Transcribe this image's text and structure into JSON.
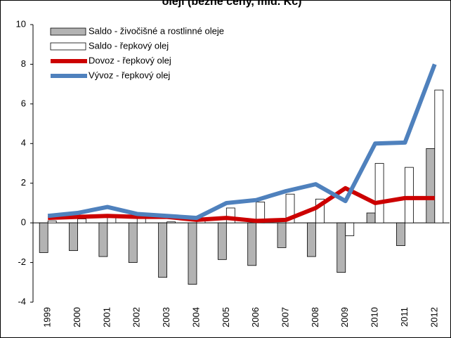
{
  "chart_data": {
    "type": "bar",
    "title": "oleji (běžné ceny, mld. Kč)",
    "categories": [
      "1999",
      "2000",
      "2001",
      "2002",
      "2003",
      "2004",
      "2005",
      "2006",
      "2007",
      "2008",
      "2009",
      "2010",
      "2011",
      "2012"
    ],
    "series": [
      {
        "name": "Saldo - živočišné a rostlinné oleje",
        "type": "bar",
        "color": "#b3b3b3",
        "values": [
          -1.5,
          -1.4,
          -1.7,
          -2.0,
          -2.75,
          -3.1,
          -1.85,
          -2.15,
          -1.25,
          -1.7,
          -2.5,
          0.5,
          -1.15,
          3.75
        ]
      },
      {
        "name": "Saldo - řepkový olej",
        "type": "bar",
        "color": "#ffffff",
        "values": [
          0.1,
          0.2,
          0.35,
          0.3,
          0.05,
          0.1,
          0.75,
          1.05,
          1.45,
          1.2,
          -0.65,
          3.0,
          2.8,
          6.7
        ]
      },
      {
        "name": "Dovoz - řepkový olej",
        "type": "line",
        "color": "#cc0000",
        "values": [
          0.25,
          0.3,
          0.35,
          0.3,
          0.3,
          0.15,
          0.25,
          0.1,
          0.15,
          0.75,
          1.75,
          1.0,
          1.25,
          1.25
        ]
      },
      {
        "name": "Vývoz - řepkový olej",
        "type": "line",
        "color": "#4f81bd",
        "values": [
          0.35,
          0.5,
          0.8,
          0.45,
          0.35,
          0.25,
          1.0,
          1.15,
          1.6,
          1.95,
          1.1,
          4.0,
          4.05,
          8.0
        ]
      }
    ],
    "ylim": [
      -4,
      10
    ],
    "yticks": [
      -4,
      -2,
      0,
      2,
      4,
      6,
      8,
      10
    ],
    "legend": "upper left"
  }
}
